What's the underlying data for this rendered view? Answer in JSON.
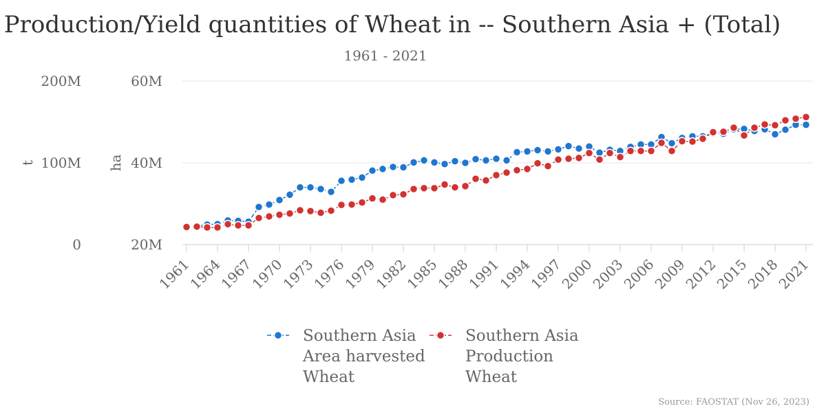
{
  "chart_data": {
    "type": "line",
    "title": "Production/Yield quantities of Wheat in -- Southern Asia + (Total)",
    "subtitle": "1961 - 2021",
    "credit": "Source: FAOSTAT (Nov 26, 2023)",
    "x_tick_labels": [
      "1961",
      "1964",
      "1967",
      "1970",
      "1973",
      "1976",
      "1979",
      "1982",
      "1985",
      "1988",
      "1991",
      "1994",
      "1997",
      "2000",
      "2003",
      "2006",
      "2009",
      "2012",
      "2015",
      "2018",
      "2021"
    ],
    "y_axes": [
      {
        "id": "production",
        "title": "t",
        "min": 0,
        "max": 200000000,
        "ticks": [
          {
            "value": 0,
            "label": "0"
          },
          {
            "value": 100000000,
            "label": "100M"
          },
          {
            "value": 200000000,
            "label": "200M"
          }
        ]
      },
      {
        "id": "area",
        "title": "ha",
        "min": 20000000,
        "max": 60000000,
        "ticks": [
          {
            "value": 20000000,
            "label": "20M"
          },
          {
            "value": 40000000,
            "label": "40M"
          },
          {
            "value": 60000000,
            "label": "60M"
          }
        ]
      }
    ],
    "grid": true,
    "legend_position": "bottom",
    "x": [
      1961,
      1962,
      1963,
      1964,
      1965,
      1966,
      1967,
      1968,
      1969,
      1970,
      1971,
      1972,
      1973,
      1974,
      1975,
      1976,
      1977,
      1978,
      1979,
      1980,
      1981,
      1982,
      1983,
      1984,
      1985,
      1986,
      1987,
      1988,
      1989,
      1990,
      1991,
      1992,
      1993,
      1994,
      1995,
      1996,
      1997,
      1998,
      1999,
      2000,
      2001,
      2002,
      2003,
      2004,
      2005,
      2006,
      2007,
      2008,
      2009,
      2010,
      2011,
      2012,
      2013,
      2014,
      2015,
      2016,
      2017,
      2018,
      2019,
      2020,
      2021
    ],
    "series": [
      {
        "name": "Southern Asia\nArea harvested\nWheat",
        "axis": "area",
        "color": "#1f77d0",
        "values": [
          24.2,
          24.5,
          24.9,
          25.0,
          25.9,
          25.8,
          25.6,
          29.2,
          29.8,
          30.9,
          32.2,
          34.0,
          34.0,
          33.6,
          32.9,
          35.6,
          35.9,
          36.4,
          38.1,
          38.5,
          39.0,
          38.9,
          40.1,
          40.6,
          40.1,
          39.7,
          40.4,
          40.0,
          40.9,
          40.6,
          41.0,
          40.6,
          42.6,
          42.8,
          43.1,
          42.8,
          43.3,
          44.1,
          43.5,
          44.0,
          42.5,
          43.2,
          42.9,
          43.9,
          44.5,
          44.5,
          46.3,
          44.8,
          46.1,
          46.5,
          46.5,
          47.2,
          47.1,
          48.2,
          48.3,
          47.8,
          48.2,
          47.0,
          48.1,
          49.3,
          49.3
        ]
      },
      {
        "name": "Southern Asia\nProduction\nWheat",
        "axis": "production",
        "color": "#d13232",
        "values": [
          21.5,
          22.0,
          21.0,
          21.0,
          25.0,
          23.5,
          23.5,
          32.5,
          34.5,
          36.5,
          38.0,
          42.0,
          41.0,
          39.0,
          41.5,
          48.5,
          49.0,
          51.5,
          56.5,
          55.0,
          60.5,
          61.5,
          68.0,
          69.0,
          69.0,
          73.5,
          70.0,
          71.5,
          80.5,
          78.5,
          85.0,
          88.0,
          91.0,
          92.5,
          99.5,
          96.0,
          104.0,
          105.0,
          106.0,
          112.0,
          104.0,
          112.0,
          107.0,
          114.5,
          114.5,
          114.5,
          124.5,
          114.5,
          126.5,
          126.0,
          129.5,
          137.5,
          138.0,
          143.0,
          133.5,
          143.0,
          147.0,
          146.0,
          152.0,
          154.0,
          156.0
        ]
      }
    ]
  }
}
